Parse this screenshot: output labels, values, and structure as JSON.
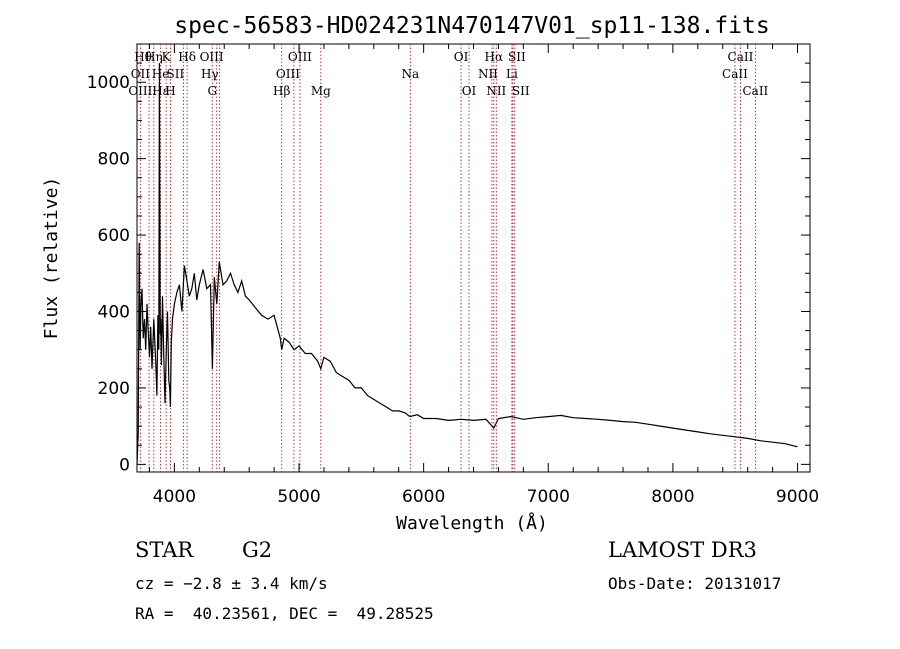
{
  "chart_data": {
    "type": "line",
    "title": "spec-56583-HD024231N470147V01_sp11-138.fits",
    "xlabel": "Wavelength (Å)",
    "ylabel": "Flux (relative)",
    "xlim": [
      3700,
      9100
    ],
    "ylim": [
      -20,
      1100
    ],
    "xticks": [
      4000,
      5000,
      6000,
      7000,
      8000,
      9000
    ],
    "yticks": [
      0,
      200,
      400,
      600,
      800,
      1000
    ],
    "grid": false,
    "series": [
      {
        "name": "flux",
        "color": "#000000",
        "x": [
          3700,
          3710,
          3718,
          3725,
          3732,
          3740,
          3750,
          3760,
          3770,
          3780,
          3790,
          3800,
          3810,
          3820,
          3835,
          3850,
          3860,
          3868,
          3875,
          3880,
          3886,
          3890,
          3896,
          3905,
          3915,
          3925,
          3935,
          3945,
          3955,
          3962,
          3968,
          3975,
          3985,
          4000,
          4020,
          4040,
          4060,
          4080,
          4100,
          4120,
          4140,
          4160,
          4180,
          4200,
          4230,
          4260,
          4290,
          4305,
          4320,
          4340,
          4360,
          4390,
          4420,
          4450,
          4480,
          4510,
          4540,
          4570,
          4600,
          4650,
          4700,
          4750,
          4800,
          4850,
          4861,
          4880,
          4920,
          4960,
          5000,
          5050,
          5100,
          5150,
          5175,
          5200,
          5250,
          5300,
          5350,
          5400,
          5450,
          5500,
          5550,
          5600,
          5650,
          5700,
          5750,
          5800,
          5850,
          5890,
          5950,
          6000,
          6100,
          6200,
          6300,
          6400,
          6500,
          6563,
          6600,
          6700,
          6800,
          6900,
          7000,
          7100,
          7200,
          7300,
          7400,
          7500,
          7600,
          7700,
          7800,
          7900,
          8000,
          8100,
          8200,
          8300,
          8400,
          8500,
          8600,
          8700,
          8800,
          8900,
          9000
        ],
        "y": [
          0,
          80,
          580,
          300,
          420,
          460,
          330,
          380,
          300,
          420,
          350,
          280,
          360,
          250,
          380,
          270,
          180,
          390,
          300,
          1050,
          340,
          380,
          260,
          440,
          280,
          160,
          300,
          400,
          220,
          200,
          150,
          320,
          380,
          420,
          450,
          470,
          400,
          520,
          480,
          440,
          460,
          500,
          430,
          470,
          510,
          460,
          470,
          250,
          490,
          420,
          530,
          470,
          480,
          500,
          470,
          450,
          480,
          440,
          430,
          410,
          390,
          380,
          390,
          330,
          300,
          330,
          320,
          300,
          310,
          290,
          290,
          270,
          250,
          280,
          270,
          240,
          230,
          220,
          200,
          200,
          180,
          170,
          160,
          150,
          140,
          140,
          135,
          125,
          130,
          120,
          120,
          115,
          118,
          115,
          118,
          95,
          120,
          125,
          118,
          122,
          125,
          128,
          122,
          120,
          118,
          115,
          112,
          110,
          105,
          100,
          95,
          90,
          85,
          80,
          76,
          72,
          68,
          62,
          58,
          54,
          46
        ]
      }
    ],
    "lines": [
      {
        "name": "Hθ",
        "wave": 3797,
        "row": 1,
        "ox": -6
      },
      {
        "name": "OII",
        "wave": 3727,
        "row": 2,
        "ox": 0
      },
      {
        "name": "OIII",
        "wave": 3727,
        "row": 3,
        "ox": 0
      },
      {
        "name": "Hη",
        "wave": 3835,
        "row": 1,
        "ox": 0
      },
      {
        "name": "He",
        "wave": 3889,
        "row": 2,
        "ox": 0
      },
      {
        "name": "Hε",
        "wave": 3889,
        "row": 3,
        "ox": 0
      },
      {
        "name": "K",
        "wave": 3934,
        "row": 1,
        "ox": 0
      },
      {
        "name": "H",
        "wave": 3969,
        "row": 3,
        "ox": 0
      },
      {
        "name": "SII",
        "wave": 4072,
        "row": 2,
        "ox": -8
      },
      {
        "name": "Hδ",
        "wave": 4102,
        "row": 1,
        "ox": 0
      },
      {
        "name": "G",
        "wave": 4304,
        "row": 3,
        "ox": 0
      },
      {
        "name": "Hγ",
        "wave": 4340,
        "row": 2,
        "ox": -7
      },
      {
        "name": "OIII",
        "wave": 4363,
        "row": 1,
        "ox": -8
      },
      {
        "name": "Hβ",
        "wave": 4861,
        "row": 3,
        "ox": 0
      },
      {
        "name": "OIII",
        "wave": 4959,
        "row": 2,
        "ox": -6
      },
      {
        "name": "OIII",
        "wave": 5007,
        "row": 1,
        "ox": 0
      },
      {
        "name": "Mg",
        "wave": 5175,
        "row": 3,
        "ox": 0
      },
      {
        "name": "Na",
        "wave": 5893,
        "row": 2,
        "ox": 0
      },
      {
        "name": "OI",
        "wave": 6300,
        "row": 1,
        "ox": 0
      },
      {
        "name": "OI",
        "wave": 6364,
        "row": 3,
        "ox": 0
      },
      {
        "name": "NII",
        "wave": 6548,
        "row": 2,
        "ox": -4
      },
      {
        "name": "Hα",
        "wave": 6563,
        "row": 1,
        "ox": 0
      },
      {
        "name": "NII",
        "wave": 6583,
        "row": 3,
        "ox": 0
      },
      {
        "name": "Li",
        "wave": 6708,
        "row": 2,
        "ox": 0
      },
      {
        "name": "SII",
        "wave": 6716,
        "row": 1,
        "ox": 4
      },
      {
        "name": "SII",
        "wave": 6731,
        "row": 3,
        "ox": 6
      },
      {
        "name": "CaII",
        "wave": 8498,
        "row": 2,
        "ox": 0
      },
      {
        "name": "CaII",
        "wave": 8542,
        "row": 1,
        "ox": 0
      },
      {
        "name": "CaII",
        "wave": 8662,
        "row": 3,
        "ox": 0
      }
    ]
  },
  "info": {
    "object_class": "STAR",
    "subclass": "G2",
    "survey": "LAMOST DR3",
    "redshift": "cz = −2.8 ± 3.4 km/s",
    "obs_date": "Obs-Date: 20131017",
    "coords": "RA =  40.23561, DEC =  49.28525"
  },
  "colors": {
    "line_marker": "#b22222",
    "spectrum": "#000000"
  }
}
